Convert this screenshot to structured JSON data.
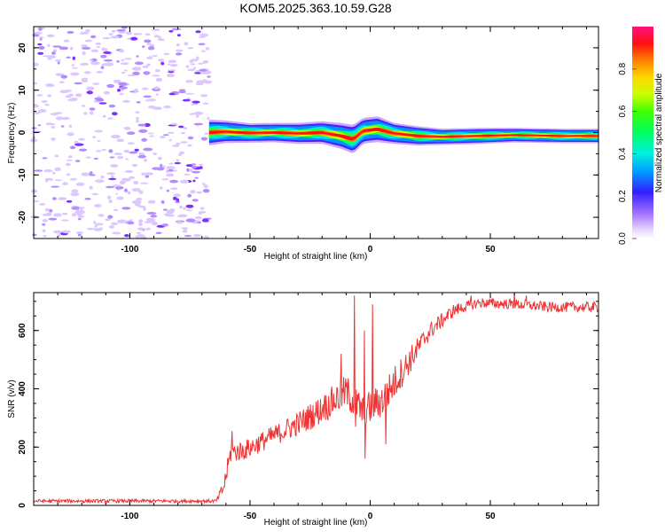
{
  "figure": {
    "title": "KOM5.2025.363.10.59.G28"
  },
  "chart_data": [
    {
      "type": "heatmap",
      "name": "spectrogram",
      "xlabel": "Height of straight line (km)",
      "ylabel": "Frequency (Hz)",
      "xlim": [
        -140,
        95
      ],
      "ylim": [
        -25,
        25
      ],
      "xticks": [
        -100,
        -50,
        0,
        50
      ],
      "yticks": [
        -20,
        -10,
        0,
        10,
        20
      ],
      "xtick_labels": [
        "-100",
        "-50",
        "0",
        "50"
      ],
      "ytick_labels": [
        "-20",
        "-10",
        "0",
        "10",
        "20"
      ],
      "noise_region_x": [
        -140,
        -67
      ],
      "signal_start_x": -67,
      "signal_track": [
        {
          "x": -67,
          "f": 0.0,
          "w": 1.6
        },
        {
          "x": -60,
          "f": 0.2,
          "w": 1.4
        },
        {
          "x": -50,
          "f": -0.1,
          "w": 1.2
        },
        {
          "x": -40,
          "f": 0.0,
          "w": 1.2
        },
        {
          "x": -30,
          "f": -0.2,
          "w": 1.3
        },
        {
          "x": -20,
          "f": 0.0,
          "w": 1.4
        },
        {
          "x": -12,
          "f": -0.8,
          "w": 1.6
        },
        {
          "x": -7,
          "f": -1.6,
          "w": 1.8
        },
        {
          "x": -3,
          "f": 0.4,
          "w": 1.6
        },
        {
          "x": 3,
          "f": 0.8,
          "w": 1.6
        },
        {
          "x": 10,
          "f": -0.2,
          "w": 1.3
        },
        {
          "x": 20,
          "f": -0.8,
          "w": 1.2
        },
        {
          "x": 30,
          "f": -1.0,
          "w": 1.0
        },
        {
          "x": 45,
          "f": -0.8,
          "w": 1.0
        },
        {
          "x": 60,
          "f": -0.6,
          "w": 0.9
        },
        {
          "x": 80,
          "f": -0.8,
          "w": 0.9
        },
        {
          "x": 95,
          "f": -0.8,
          "w": 0.9
        }
      ]
    },
    {
      "type": "colorbar",
      "name": "colorbar",
      "label": "Normalized spectral amplitude",
      "range": [
        0,
        1
      ],
      "ticks": [
        0.0,
        0.2,
        0.4,
        0.6,
        0.8
      ],
      "tick_labels": [
        "0.0",
        "0.2",
        "0.4",
        "0.6",
        "0.8"
      ]
    },
    {
      "type": "line",
      "name": "snr",
      "xlabel": "Height of straight line (km)",
      "ylabel": "SNR (v/v)",
      "xlim": [
        -140,
        95
      ],
      "ylim": [
        0,
        730
      ],
      "xticks": [
        -100,
        -50,
        0,
        50
      ],
      "yticks": [
        0,
        200,
        400,
        600
      ],
      "xtick_labels": [
        "-100",
        "-50",
        "0",
        "50"
      ],
      "ytick_labels": [
        "0",
        "200",
        "400",
        "600"
      ],
      "color": "#ee3333",
      "trend": [
        [
          -140,
          15
        ],
        [
          -64,
          15
        ],
        [
          -61,
          60
        ],
        [
          -58,
          180
        ],
        [
          -52,
          190
        ],
        [
          -40,
          240
        ],
        [
          -30,
          280
        ],
        [
          -20,
          330
        ],
        [
          -10,
          390
        ],
        [
          -3,
          320
        ],
        [
          5,
          360
        ],
        [
          15,
          480
        ],
        [
          25,
          600
        ],
        [
          35,
          670
        ],
        [
          45,
          695
        ],
        [
          60,
          690
        ],
        [
          75,
          680
        ],
        [
          95,
          680
        ]
      ],
      "noise_amplitude": [
        [
          -140,
          6
        ],
        [
          -64,
          6
        ],
        [
          -60,
          35
        ],
        [
          -40,
          35
        ],
        [
          -20,
          50
        ],
        [
          -10,
          60
        ],
        [
          0,
          60
        ],
        [
          10,
          60
        ],
        [
          25,
          30
        ],
        [
          40,
          18
        ],
        [
          95,
          18
        ]
      ],
      "spikes": [
        {
          "x": -57.5,
          "y": 255
        },
        {
          "x": -19,
          "y": 360
        },
        {
          "x": -12,
          "y": 520
        },
        {
          "x": -6.5,
          "y": 720
        },
        {
          "x": -6,
          "y": 270
        },
        {
          "x": -2.5,
          "y": 600
        },
        {
          "x": -2.2,
          "y": 160
        },
        {
          "x": 1,
          "y": 690
        },
        {
          "x": 2,
          "y": 320
        },
        {
          "x": 6.5,
          "y": 210
        },
        {
          "x": 42,
          "y": 720
        },
        {
          "x": 60,
          "y": 730
        },
        {
          "x": 65,
          "y": 720
        }
      ]
    }
  ]
}
